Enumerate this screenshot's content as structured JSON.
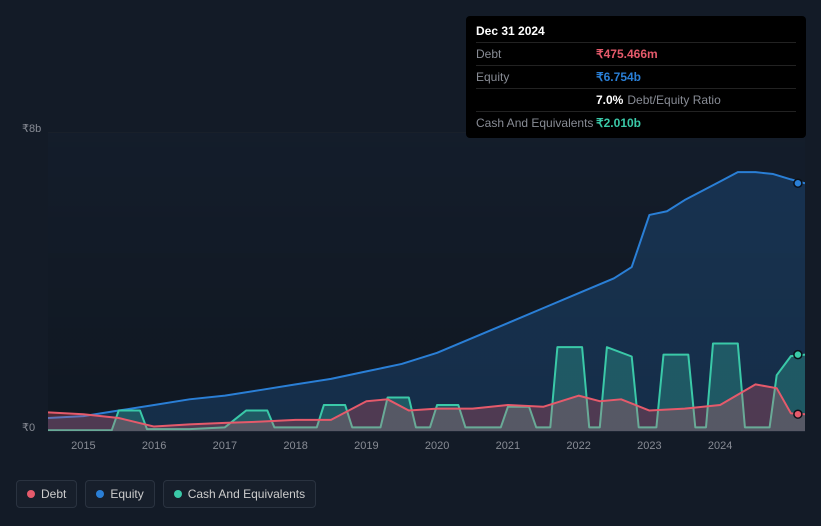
{
  "colors": {
    "debt": "#e55a6b",
    "equity": "#2a7fd6",
    "cash": "#3ac9a8",
    "bg": "#131b27",
    "grid": "rgba(255,255,255,0.04)",
    "text_muted": "#888c95"
  },
  "tooltip": {
    "date": "Dec 31 2024",
    "rows": [
      {
        "label": "Debt",
        "value": "₹475.466m",
        "color": "#e55a6b"
      },
      {
        "label": "Equity",
        "value": "₹6.754b",
        "color": "#2a7fd6"
      },
      {
        "label": "",
        "value": "7.0%",
        "hint": "Debt/Equity Ratio",
        "color": "#ffffff"
      },
      {
        "label": "Cash And Equivalents",
        "value": "₹2.010b",
        "color": "#3ac9a8"
      }
    ]
  },
  "y_axis": {
    "top": "₹8b",
    "bottom": "₹0"
  },
  "x_axis": {
    "labels": [
      "2015",
      "2016",
      "2017",
      "2018",
      "2019",
      "2020",
      "2021",
      "2022",
      "2023",
      "2024"
    ]
  },
  "legend": [
    {
      "label": "Debt",
      "color": "#e55a6b"
    },
    {
      "label": "Equity",
      "color": "#2a7fd6"
    },
    {
      "label": "Cash And Equivalents",
      "color": "#3ac9a8"
    }
  ],
  "chart": {
    "type": "area",
    "ylim": [
      0,
      8
    ],
    "xlim": [
      2014.5,
      2025.2
    ],
    "marker_x": 2025.0,
    "series": {
      "equity": {
        "color": "#2a7fd6",
        "points": [
          [
            2014.5,
            0.35
          ],
          [
            2015.0,
            0.4
          ],
          [
            2015.5,
            0.55
          ],
          [
            2016.0,
            0.7
          ],
          [
            2016.5,
            0.85
          ],
          [
            2017.0,
            0.95
          ],
          [
            2017.5,
            1.1
          ],
          [
            2018.0,
            1.25
          ],
          [
            2018.5,
            1.4
          ],
          [
            2019.0,
            1.6
          ],
          [
            2019.5,
            1.8
          ],
          [
            2020.0,
            2.1
          ],
          [
            2020.5,
            2.5
          ],
          [
            2021.0,
            2.9
          ],
          [
            2021.5,
            3.3
          ],
          [
            2022.0,
            3.7
          ],
          [
            2022.5,
            4.1
          ],
          [
            2022.75,
            4.4
          ],
          [
            2023.0,
            5.8
          ],
          [
            2023.25,
            5.9
          ],
          [
            2023.5,
            6.2
          ],
          [
            2024.0,
            6.7
          ],
          [
            2024.25,
            6.95
          ],
          [
            2024.5,
            6.95
          ],
          [
            2024.75,
            6.9
          ],
          [
            2025.0,
            6.754
          ],
          [
            2025.2,
            6.65
          ]
        ]
      },
      "debt": {
        "color": "#e55a6b",
        "points": [
          [
            2014.5,
            0.5
          ],
          [
            2015.0,
            0.45
          ],
          [
            2015.5,
            0.35
          ],
          [
            2016.0,
            0.12
          ],
          [
            2016.5,
            0.18
          ],
          [
            2017.0,
            0.22
          ],
          [
            2017.5,
            0.25
          ],
          [
            2018.0,
            0.3
          ],
          [
            2018.5,
            0.3
          ],
          [
            2019.0,
            0.8
          ],
          [
            2019.3,
            0.85
          ],
          [
            2019.6,
            0.55
          ],
          [
            2020.0,
            0.6
          ],
          [
            2020.5,
            0.6
          ],
          [
            2021.0,
            0.7
          ],
          [
            2021.5,
            0.65
          ],
          [
            2022.0,
            0.95
          ],
          [
            2022.3,
            0.8
          ],
          [
            2022.6,
            0.85
          ],
          [
            2023.0,
            0.55
          ],
          [
            2023.5,
            0.6
          ],
          [
            2024.0,
            0.7
          ],
          [
            2024.5,
            1.25
          ],
          [
            2024.8,
            1.15
          ],
          [
            2025.0,
            0.475
          ],
          [
            2025.2,
            0.45
          ]
        ]
      },
      "cash": {
        "color": "#3ac9a8",
        "points": [
          [
            2014.5,
            0.02
          ],
          [
            2015.0,
            0.02
          ],
          [
            2015.4,
            0.02
          ],
          [
            2015.5,
            0.55
          ],
          [
            2015.8,
            0.55
          ],
          [
            2015.9,
            0.05
          ],
          [
            2016.5,
            0.05
          ],
          [
            2017.0,
            0.1
          ],
          [
            2017.3,
            0.55
          ],
          [
            2017.6,
            0.55
          ],
          [
            2017.7,
            0.1
          ],
          [
            2018.3,
            0.1
          ],
          [
            2018.4,
            0.7
          ],
          [
            2018.7,
            0.7
          ],
          [
            2018.8,
            0.1
          ],
          [
            2019.2,
            0.1
          ],
          [
            2019.3,
            0.9
          ],
          [
            2019.6,
            0.9
          ],
          [
            2019.7,
            0.1
          ],
          [
            2019.9,
            0.1
          ],
          [
            2020.0,
            0.7
          ],
          [
            2020.3,
            0.7
          ],
          [
            2020.4,
            0.1
          ],
          [
            2020.9,
            0.1
          ],
          [
            2021.0,
            0.65
          ],
          [
            2021.3,
            0.65
          ],
          [
            2021.4,
            0.1
          ],
          [
            2021.6,
            0.1
          ],
          [
            2021.7,
            2.25
          ],
          [
            2022.05,
            2.25
          ],
          [
            2022.15,
            0.1
          ],
          [
            2022.3,
            0.1
          ],
          [
            2022.4,
            2.25
          ],
          [
            2022.75,
            2.0
          ],
          [
            2022.85,
            0.1
          ],
          [
            2023.1,
            0.1
          ],
          [
            2023.2,
            2.05
          ],
          [
            2023.55,
            2.05
          ],
          [
            2023.65,
            0.1
          ],
          [
            2023.8,
            0.1
          ],
          [
            2023.9,
            2.35
          ],
          [
            2024.25,
            2.35
          ],
          [
            2024.35,
            0.1
          ],
          [
            2024.7,
            0.1
          ],
          [
            2024.8,
            1.5
          ],
          [
            2025.0,
            2.01
          ],
          [
            2025.2,
            2.05
          ]
        ]
      }
    },
    "end_markers": [
      {
        "x": 2025.1,
        "y": 6.65,
        "color": "#2a7fd6"
      },
      {
        "x": 2025.1,
        "y": 2.05,
        "color": "#3ac9a8"
      },
      {
        "x": 2025.1,
        "y": 0.45,
        "color": "#e55a6b"
      }
    ]
  }
}
